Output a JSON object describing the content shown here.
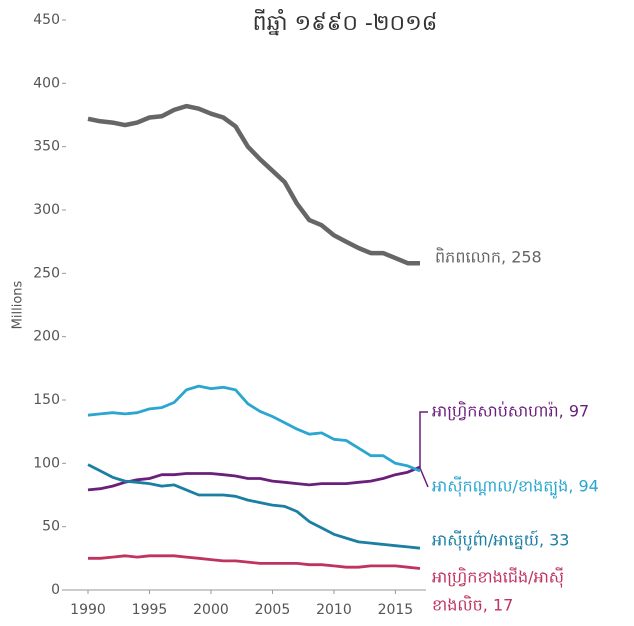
{
  "chart_data": {
    "type": "line",
    "title": "ពីឆ្នាំ ១៩៩០ -២០១៨",
    "ylabel": "Millions",
    "x": [
      1990,
      1991,
      1992,
      1993,
      1994,
      1995,
      1996,
      1997,
      1998,
      1999,
      2000,
      2001,
      2002,
      2003,
      2004,
      2005,
      2006,
      2007,
      2008,
      2009,
      2010,
      2011,
      2012,
      2013,
      2014,
      2015,
      2016,
      2017
    ],
    "xlim": [
      1990,
      2017
    ],
    "xticks": [
      1990,
      1995,
      2000,
      2005,
      2010,
      2015
    ],
    "ylim": [
      0,
      450
    ],
    "yticks": [
      0,
      50,
      100,
      150,
      200,
      250,
      300,
      350,
      400,
      450
    ],
    "series": [
      {
        "name": "ពិភពលោក",
        "color": "#666666",
        "label_lines": [
          "ពិភពលោក, 258"
        ],
        "values": [
          372,
          370,
          369,
          367,
          369,
          373,
          374,
          379,
          382,
          380,
          376,
          373,
          366,
          350,
          340,
          331,
          322,
          305,
          292,
          288,
          280,
          275,
          270,
          266,
          266,
          262,
          258,
          258
        ]
      },
      {
        "name": "អាហ្វ្រិកសាប់សាហារ៉ា",
        "color": "#6a1f7a",
        "label_lines": [
          "អាហ្វ្រិកសាប់សាហារ៉ា, 97"
        ],
        "values": [
          79,
          80,
          82,
          85,
          87,
          88,
          91,
          91,
          92,
          92,
          92,
          91,
          90,
          88,
          88,
          86,
          85,
          84,
          83,
          84,
          84,
          84,
          85,
          86,
          88,
          91,
          93,
          97
        ]
      },
      {
        "name": "អាស៊ីកណ្តាល/ខាងត្បូង",
        "color": "#2aa6d0",
        "label_lines": [
          "អាស៊ីកណ្តាល/ខាងត្បូង, 94"
        ],
        "values": [
          138,
          139,
          140,
          139,
          140,
          143,
          144,
          148,
          158,
          161,
          159,
          160,
          158,
          147,
          141,
          137,
          132,
          127,
          123,
          124,
          119,
          118,
          112,
          106,
          106,
          100,
          98,
          94
        ]
      },
      {
        "name": "អាស៊ីបូព៌ា/អាគ្នេយ៍",
        "color": "#1a7fa3",
        "label_lines": [
          "អាស៊ីបូព៌ា/អាគ្នេយ៍, 33"
        ],
        "values": [
          99,
          94,
          89,
          86,
          85,
          84,
          82,
          83,
          79,
          75,
          75,
          75,
          74,
          71,
          69,
          67,
          66,
          62,
          54,
          49,
          44,
          41,
          38,
          37,
          36,
          35,
          34,
          33
        ]
      },
      {
        "name": "អាហ្វ្រិកខាងជើង/អាស៊ី ខាងលិច",
        "color": "#c0335e",
        "label_lines": [
          "អាហ្វ្រិកខាងជើង/អាស៊ី",
          "ខាងលិច, 17"
        ],
        "values": [
          25,
          25,
          26,
          27,
          26,
          27,
          27,
          27,
          26,
          25,
          24,
          23,
          23,
          22,
          21,
          21,
          21,
          21,
          20,
          20,
          19,
          18,
          18,
          19,
          19,
          19,
          18,
          17
        ]
      }
    ]
  }
}
